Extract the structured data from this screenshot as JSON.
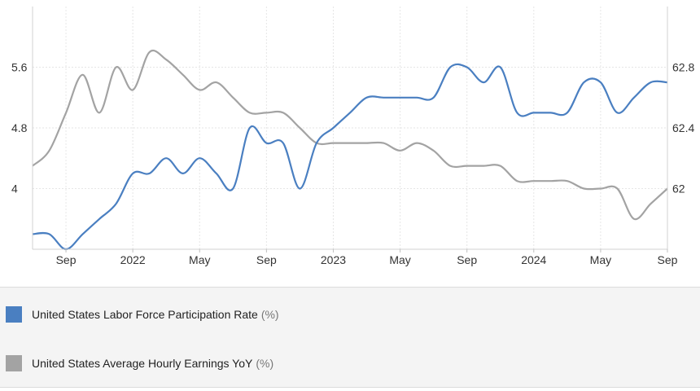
{
  "chart_data": {
    "type": "line",
    "x_tick_labels": [
      "Sep",
      "2022",
      "May",
      "Sep",
      "2023",
      "May",
      "Sep",
      "2024",
      "May",
      "Sep"
    ],
    "left_axis": {
      "ticks": [
        4,
        4.8,
        5.6
      ],
      "tick_labels": [
        "4",
        "4.8",
        "5.6"
      ],
      "ylim": [
        3.2,
        6.4
      ]
    },
    "right_axis": {
      "ticks": [
        62,
        62.4,
        62.8
      ],
      "tick_labels": [
        "62",
        "62.4",
        "62.8"
      ],
      "ylim": [
        61.6,
        63.2
      ]
    },
    "x_months": [
      "Jul 2021",
      "Aug 2021",
      "Sep 2021",
      "Oct 2021",
      "Nov 2021",
      "Dec 2021",
      "Jan 2022",
      "Feb 2022",
      "Mar 2022",
      "Apr 2022",
      "May 2022",
      "Jun 2022",
      "Jul 2022",
      "Aug 2022",
      "Sep 2022",
      "Oct 2022",
      "Nov 2022",
      "Dec 2022",
      "Jan 2023",
      "Feb 2023",
      "Mar 2023",
      "Apr 2023",
      "May 2023",
      "Jun 2023",
      "Jul 2023",
      "Aug 2023",
      "Sep 2023",
      "Oct 2023",
      "Nov 2023",
      "Dec 2023",
      "Jan 2024",
      "Feb 2024",
      "Mar 2024",
      "Apr 2024",
      "May 2024",
      "Jun 2024",
      "Jul 2024",
      "Aug 2024",
      "Sep 2024"
    ],
    "series": [
      {
        "name": "United States Labor Force Participation Rate",
        "unit": "(%)",
        "axis": "right",
        "color": "#4a7fc1",
        "values": [
          61.7,
          61.7,
          61.6,
          61.7,
          61.8,
          61.9,
          62.1,
          62.1,
          62.2,
          62.1,
          62.2,
          62.1,
          62.0,
          62.4,
          62.3,
          62.3,
          62.0,
          62.3,
          62.4,
          62.5,
          62.6,
          62.6,
          62.6,
          62.6,
          62.6,
          62.8,
          62.8,
          62.7,
          62.8,
          62.5,
          62.5,
          62.5,
          62.5,
          62.7,
          62.7,
          62.5,
          62.6,
          62.7,
          62.7
        ]
      },
      {
        "name": "United States Average Hourly Earnings YoY",
        "unit": "(%)",
        "axis": "left",
        "color": "#a3a3a3",
        "values": [
          4.3,
          4.5,
          5.0,
          5.5,
          5.0,
          5.6,
          5.3,
          5.8,
          5.7,
          5.5,
          5.3,
          5.4,
          5.2,
          5.0,
          5.0,
          5.0,
          4.8,
          4.6,
          4.6,
          4.6,
          4.6,
          4.6,
          4.5,
          4.6,
          4.5,
          4.3,
          4.3,
          4.3,
          4.3,
          4.1,
          4.1,
          4.1,
          4.1,
          4.0,
          4.0,
          4.0,
          3.6,
          3.8,
          4.0
        ]
      }
    ],
    "grid": true
  }
}
